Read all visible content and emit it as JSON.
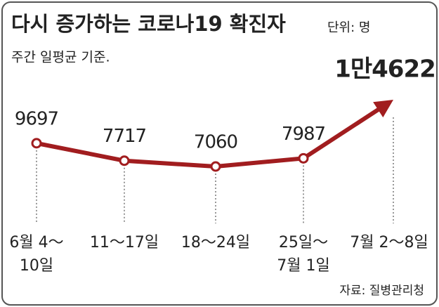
{
  "chart_data": {
    "type": "line",
    "title": "다시 증가하는 코로나19 확진자",
    "unit": "단위: 명",
    "subtitle": "주간 일평균 기준.",
    "source": "자료: 질병관리청",
    "categories": [
      "6월 4～\n10일",
      "11～17일",
      "18～24일",
      "25일～\n7월 1일",
      "7월 2～8일"
    ],
    "values": [
      9697,
      7717,
      7060,
      7987,
      14622
    ],
    "value_labels": [
      "9697",
      "7717",
      "7060",
      "7987",
      "1만4622"
    ],
    "color": "#a11d1f"
  }
}
